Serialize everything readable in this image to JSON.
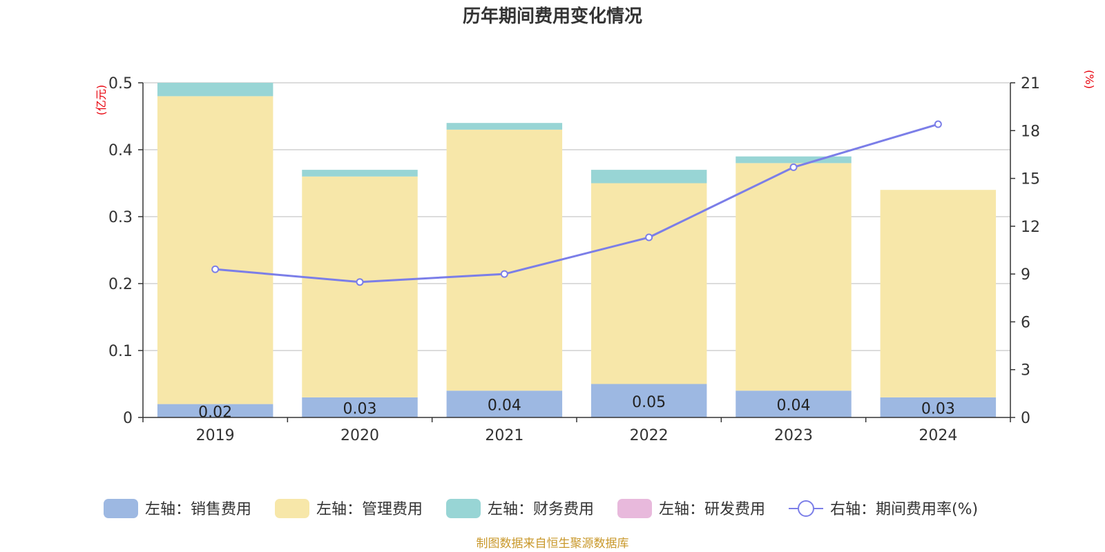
{
  "chart_data": {
    "type": "bar",
    "title": "历年期间费用变化情况",
    "categories": [
      "2019",
      "2020",
      "2021",
      "2022",
      "2023",
      "2024"
    ],
    "stacked": true,
    "y_left": {
      "unit": "(亿元)",
      "range": [
        0,
        0.5
      ],
      "ticks": [
        "0",
        "0.1",
        "0.2",
        "0.3",
        "0.4",
        "0.5"
      ]
    },
    "y_right": {
      "unit": "(%)",
      "range": [
        0,
        21
      ],
      "ticks": [
        "0",
        "3",
        "6",
        "9",
        "12",
        "15",
        "18",
        "21"
      ]
    },
    "series": [
      {
        "name": "左轴：销售费用",
        "type": "bar",
        "axis": "left",
        "color": "#9db8e2",
        "values": [
          0.02,
          0.03,
          0.04,
          0.05,
          0.04,
          0.03
        ],
        "labels": [
          "0.02",
          "0.03",
          "0.04",
          "0.05",
          "0.04",
          "0.03"
        ]
      },
      {
        "name": "左轴：管理费用",
        "type": "bar",
        "axis": "left",
        "color": "#f7e7a9",
        "values": [
          0.46,
          0.33,
          0.39,
          0.3,
          0.34,
          0.31
        ]
      },
      {
        "name": "左轴：财务费用",
        "type": "bar",
        "axis": "left",
        "color": "#98d5d5",
        "values": [
          0.02,
          0.01,
          0.01,
          0.02,
          0.01,
          0.0
        ]
      },
      {
        "name": "左轴：研发费用",
        "type": "bar",
        "axis": "left",
        "color": "#e8b9dc",
        "values": [
          0,
          0,
          0,
          0,
          0,
          0
        ]
      },
      {
        "name": "右轴：期间费用率(%)",
        "type": "line",
        "axis": "right",
        "color": "#7b7ee8",
        "values": [
          9.3,
          8.5,
          9.0,
          11.3,
          15.7,
          18.4
        ]
      }
    ],
    "grid": true,
    "legend_position": "bottom"
  },
  "source": "制图数据来自恒生聚源数据库"
}
